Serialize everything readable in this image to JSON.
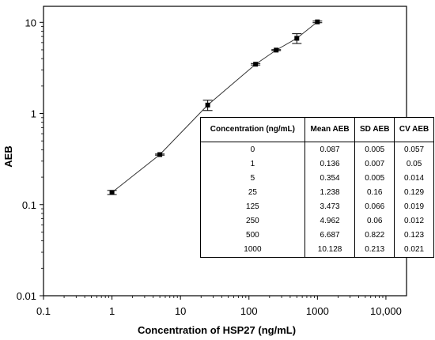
{
  "chart_data": {
    "type": "scatter",
    "xlabel": "Concentration of HSP27 (ng/mL)",
    "ylabel": "AEB",
    "x_scale": "log",
    "y_scale": "log",
    "xlim": [
      0.1,
      20000
    ],
    "ylim": [
      0.01,
      15
    ],
    "x_ticks": [
      "0.1",
      "1",
      "10",
      "100",
      "1000",
      "10,000"
    ],
    "y_ticks": [
      "0.01",
      "0.1",
      "1",
      "10"
    ],
    "grid": false,
    "series": [
      {
        "x": [
          1,
          5,
          25,
          125,
          250,
          500,
          1000
        ],
        "y": [
          0.136,
          0.354,
          1.238,
          3.473,
          4.962,
          6.687,
          10.128
        ],
        "error": [
          0.007,
          0.005,
          0.16,
          0.066,
          0.06,
          0.822,
          0.213
        ]
      }
    ],
    "table": {
      "columns": [
        "Concentration (ng/mL)",
        "Mean AEB",
        "SD AEB",
        "CV AEB"
      ],
      "rows": [
        [
          "0",
          "0.087",
          "0.005",
          "0.057"
        ],
        [
          "1",
          "0.136",
          "0.007",
          "0.05"
        ],
        [
          "5",
          "0.354",
          "0.005",
          "0.014"
        ],
        [
          "25",
          "1.238",
          "0.16",
          "0.129"
        ],
        [
          "125",
          "3.473",
          "0.066",
          "0.019"
        ],
        [
          "250",
          "4.962",
          "0.06",
          "0.012"
        ],
        [
          "500",
          "6.687",
          "0.822",
          "0.123"
        ],
        [
          "1000",
          "10.128",
          "0.213",
          "0.021"
        ]
      ]
    }
  }
}
